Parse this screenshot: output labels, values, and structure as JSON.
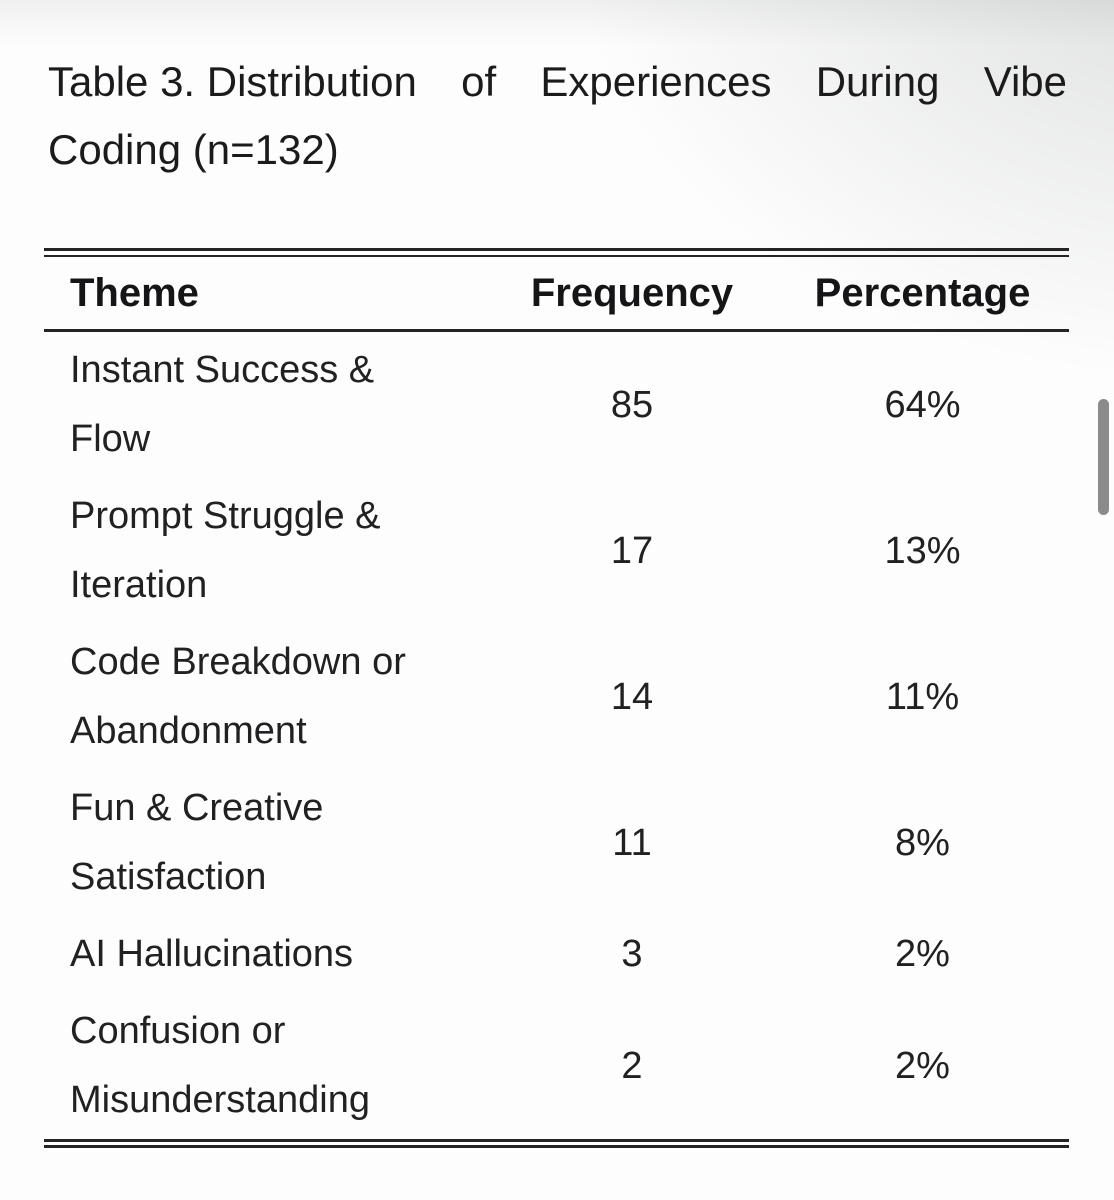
{
  "colors": {
    "text": "#1c1c1e",
    "rule": "#242425",
    "scrollbar_thumb": "#8b8b8b",
    "background_tint": "#e9ebeb"
  },
  "caption": {
    "line1_words": [
      "Table 3. Distribution",
      "of",
      "Experiences",
      "During",
      "Vibe"
    ],
    "line2": "Coding (n=132)"
  },
  "table": {
    "headers": [
      "Theme",
      "Frequency",
      "Percentage"
    ],
    "rows": [
      {
        "theme": "Instant Success & Flow",
        "frequency": "85",
        "percentage": "64%"
      },
      {
        "theme": "Prompt Struggle & Iteration",
        "frequency": "17",
        "percentage": "13%"
      },
      {
        "theme": "Code Breakdown or Abandonment",
        "frequency": "14",
        "percentage": "11%"
      },
      {
        "theme": "Fun & Creative Satisfaction",
        "frequency": "11",
        "percentage": "8%"
      },
      {
        "theme": "AI Hallucinations",
        "frequency": "3",
        "percentage": "2%"
      },
      {
        "theme": "Confusion or Misunderstanding",
        "frequency": "2",
        "percentage": "2%"
      }
    ]
  },
  "chart_data": {
    "type": "table",
    "title": "Table 3. Distribution of Experiences During Vibe Coding (n=132)",
    "columns": [
      "Theme",
      "Frequency",
      "Percentage"
    ],
    "rows": [
      [
        "Instant Success & Flow",
        85,
        "64%"
      ],
      [
        "Prompt Struggle & Iteration",
        17,
        "13%"
      ],
      [
        "Code Breakdown or Abandonment",
        14,
        "11%"
      ],
      [
        "Fun & Creative Satisfaction",
        11,
        "8%"
      ],
      [
        "AI Hallucinations",
        3,
        "2%"
      ],
      [
        "Confusion or Misunderstanding",
        2,
        "2%"
      ]
    ],
    "n": 132
  }
}
